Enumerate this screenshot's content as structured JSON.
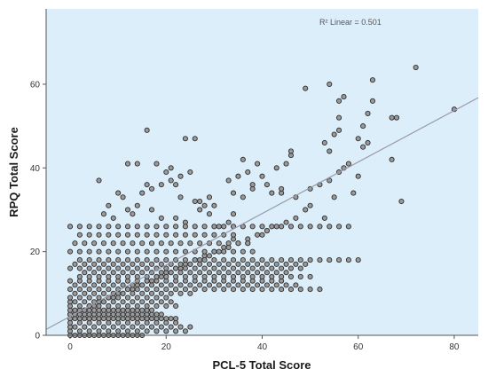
{
  "chart_data": {
    "type": "scatter",
    "title": "",
    "xlabel": "PCL-5 Total Score",
    "ylabel": "RPQ Total Score",
    "xlim": [
      -5,
      85
    ],
    "ylim": [
      0,
      78
    ],
    "xticks": [
      0,
      20,
      40,
      60,
      80
    ],
    "yticks": [
      0,
      20,
      40,
      60
    ],
    "grid": false,
    "annotation": "R² Linear = 0.501",
    "fit_line": {
      "intercept": 4.5,
      "slope": 0.615,
      "x_range": [
        -5,
        85
      ]
    },
    "colors": {
      "plot_background": "#ddeefb",
      "point_fill": "#9a9a9a",
      "point_stroke": "#2e2e2e",
      "fit_line": "#9a9aa8",
      "axis": "#555555"
    },
    "points_x": [
      72,
      80,
      54,
      57,
      49,
      63,
      63,
      68,
      67,
      62,
      61,
      61,
      56,
      56,
      56,
      55,
      53,
      54,
      58,
      56,
      60,
      59,
      55,
      67,
      69,
      60,
      62,
      57,
      54,
      52,
      50,
      44,
      45,
      36,
      46,
      46,
      43,
      39,
      37,
      35,
      33,
      41,
      38,
      30,
      27,
      29,
      34,
      36,
      26,
      24,
      22,
      21,
      18,
      16,
      20,
      23,
      17,
      19,
      14,
      13,
      16,
      15,
      12,
      10,
      11,
      9,
      7,
      8,
      6,
      12,
      14,
      17,
      19,
      21,
      23,
      25,
      26,
      27,
      28,
      29,
      24,
      22,
      31,
      33,
      34,
      38,
      40,
      42,
      44,
      47,
      49,
      50,
      53,
      41,
      40,
      37,
      34,
      32,
      30,
      28,
      26,
      24,
      22,
      20,
      18,
      16,
      14,
      12,
      10,
      8,
      6,
      4,
      2,
      0,
      3,
      5,
      7,
      9,
      11,
      13,
      15,
      17,
      19,
      21,
      23,
      25,
      27,
      29,
      31,
      33,
      35,
      37,
      39,
      41,
      43,
      45,
      47,
      0,
      1,
      2,
      3,
      4,
      5,
      6,
      7,
      8,
      9,
      10,
      11,
      12,
      13,
      14,
      15,
      0,
      2,
      4,
      6,
      8,
      10,
      12,
      14,
      16,
      18,
      20,
      22,
      24,
      0,
      1,
      3,
      5,
      7,
      9,
      11,
      13,
      15,
      17,
      19,
      21,
      23,
      25,
      0,
      2,
      4,
      6,
      8,
      10,
      12,
      14,
      16,
      18,
      20,
      22,
      0,
      1,
      2,
      3,
      4,
      5,
      6,
      7,
      8,
      9,
      10,
      11,
      12,
      13,
      14,
      15,
      16,
      17,
      18,
      19,
      20,
      21,
      22,
      0,
      1,
      2,
      3,
      4,
      5,
      6,
      7,
      8,
      9,
      10,
      11,
      12,
      13,
      14,
      15,
      16,
      17,
      18,
      19,
      0,
      1,
      2,
      3,
      4,
      5,
      6,
      7,
      8,
      9,
      10,
      11,
      12,
      13,
      14,
      15,
      16,
      17,
      0,
      2,
      4,
      6,
      8,
      10,
      12,
      14,
      16,
      18,
      20,
      22,
      0,
      1,
      3,
      5,
      7,
      9,
      11,
      13,
      15,
      17,
      19,
      21,
      0,
      2,
      4,
      6,
      8,
      10,
      12,
      14,
      16,
      18,
      20,
      1,
      3,
      5,
      7,
      9,
      11,
      13,
      15,
      17,
      19,
      21,
      23,
      25,
      0,
      2,
      4,
      6,
      8,
      10,
      12,
      14,
      16,
      18,
      20,
      22,
      24,
      26,
      28,
      30,
      32,
      34,
      36,
      38,
      40,
      42,
      44,
      46,
      48,
      50,
      52,
      1,
      3,
      5,
      7,
      9,
      11,
      13,
      15,
      17,
      19,
      21,
      23,
      25,
      27,
      29,
      31,
      33,
      35,
      37,
      39,
      41,
      43,
      45,
      47,
      0,
      2,
      4,
      6,
      8,
      10,
      12,
      14,
      16,
      18,
      20,
      22,
      24,
      26,
      28,
      30,
      32,
      34,
      36,
      38,
      40,
      42,
      44,
      2,
      4,
      6,
      8,
      10,
      12,
      14,
      16,
      18,
      20,
      22,
      24,
      26,
      28,
      30,
      32,
      34,
      36,
      38,
      40,
      42,
      44,
      46,
      48,
      50,
      3,
      5,
      7,
      9,
      11,
      13,
      15,
      17,
      19,
      21,
      23,
      25,
      27,
      29,
      31,
      33,
      35,
      37,
      39,
      41,
      43,
      45,
      0,
      2,
      4,
      6,
      8,
      10,
      12,
      14,
      16,
      18,
      20,
      22,
      24,
      26,
      28,
      30,
      32,
      34,
      36,
      38,
      40,
      42,
      44,
      46,
      48,
      1,
      3,
      5,
      7,
      9,
      11,
      13,
      15,
      17,
      19,
      21,
      23,
      25,
      27,
      29,
      31,
      33,
      35,
      37,
      39,
      41,
      43,
      45,
      47,
      49,
      2,
      4,
      6,
      8,
      10,
      12,
      14,
      16,
      18,
      20,
      22,
      24,
      26,
      28,
      30,
      32,
      34,
      36,
      38,
      40,
      42,
      44,
      46,
      48,
      50,
      52,
      54,
      56,
      58,
      60,
      0,
      2,
      4,
      6,
      8,
      10,
      12,
      14,
      16,
      18,
      20,
      22,
      24,
      26,
      28,
      30,
      32,
      34,
      36,
      38,
      1,
      3,
      5,
      7,
      9,
      11,
      13,
      15,
      17,
      19,
      21,
      23,
      25,
      27,
      29,
      31,
      33,
      35,
      37,
      2,
      4,
      6,
      8,
      10,
      12,
      14,
      16,
      18,
      20,
      22,
      24,
      26,
      28,
      30,
      32,
      34,
      0,
      2,
      4,
      6,
      8,
      10,
      12,
      14,
      16,
      18,
      20,
      22,
      24,
      26,
      28,
      30,
      32,
      34,
      36,
      38,
      40,
      42,
      44,
      46,
      48,
      50,
      52,
      54,
      56,
      58
    ],
    "points_y": [
      64,
      54,
      60,
      57,
      59,
      61,
      56,
      52,
      52,
      53,
      50,
      45,
      56,
      52,
      49,
      48,
      46,
      44,
      41,
      39,
      38,
      34,
      33,
      42,
      32,
      47,
      46,
      40,
      37,
      36,
      35,
      34,
      41,
      42,
      43,
      44,
      40,
      41,
      39,
      38,
      37,
      36,
      35,
      31,
      32,
      33,
      34,
      33,
      47,
      47,
      36,
      40,
      41,
      49,
      39,
      33,
      30,
      28,
      31,
      29,
      36,
      34,
      30,
      34,
      33,
      28,
      29,
      31,
      37,
      41,
      41,
      35,
      36,
      37,
      38,
      39,
      32,
      30,
      31,
      29,
      27,
      28,
      26,
      27,
      29,
      36,
      38,
      34,
      35,
      33,
      30,
      31,
      28,
      25,
      24,
      22,
      23,
      21,
      20,
      19,
      18,
      17,
      16,
      15,
      14,
      13,
      12,
      11,
      10,
      9,
      8,
      7,
      6,
      5,
      6,
      7,
      8,
      9,
      10,
      11,
      12,
      13,
      14,
      15,
      16,
      17,
      18,
      19,
      20,
      21,
      22,
      23,
      24,
      25,
      26,
      27,
      28,
      0,
      0,
      0,
      0,
      0,
      0,
      0,
      0,
      0,
      0,
      0,
      0,
      0,
      0,
      0,
      0,
      1,
      1,
      1,
      1,
      1,
      1,
      1,
      1,
      1,
      1,
      1,
      1,
      1,
      2,
      2,
      2,
      2,
      2,
      2,
      2,
      2,
      2,
      2,
      2,
      2,
      2,
      2,
      3,
      3,
      3,
      3,
      3,
      3,
      3,
      3,
      3,
      3,
      3,
      3,
      4,
      4,
      4,
      4,
      4,
      4,
      4,
      4,
      4,
      4,
      4,
      4,
      4,
      4,
      4,
      4,
      4,
      4,
      4,
      4,
      4,
      4,
      4,
      5,
      5,
      5,
      5,
      5,
      5,
      5,
      5,
      5,
      5,
      5,
      5,
      5,
      5,
      5,
      5,
      5,
      5,
      5,
      5,
      6,
      6,
      6,
      6,
      6,
      6,
      6,
      6,
      6,
      6,
      6,
      6,
      6,
      6,
      6,
      6,
      6,
      6,
      7,
      7,
      7,
      7,
      7,
      7,
      7,
      7,
      7,
      7,
      7,
      7,
      8,
      8,
      8,
      8,
      8,
      8,
      8,
      8,
      8,
      8,
      8,
      8,
      9,
      9,
      9,
      9,
      9,
      9,
      9,
      9,
      9,
      9,
      9,
      10,
      10,
      10,
      10,
      10,
      10,
      10,
      10,
      10,
      10,
      10,
      10,
      10,
      11,
      11,
      11,
      11,
      11,
      11,
      11,
      11,
      11,
      11,
      11,
      11,
      11,
      11,
      11,
      11,
      11,
      11,
      11,
      11,
      11,
      11,
      11,
      11,
      11,
      11,
      11,
      12,
      12,
      12,
      12,
      12,
      12,
      12,
      12,
      12,
      12,
      12,
      12,
      12,
      12,
      12,
      12,
      12,
      12,
      12,
      12,
      12,
      12,
      12,
      12,
      13,
      13,
      13,
      13,
      13,
      13,
      13,
      13,
      13,
      13,
      13,
      13,
      13,
      13,
      13,
      13,
      13,
      13,
      13,
      13,
      13,
      13,
      13,
      14,
      14,
      14,
      14,
      14,
      14,
      14,
      14,
      14,
      14,
      14,
      14,
      14,
      14,
      14,
      14,
      14,
      14,
      14,
      14,
      14,
      14,
      14,
      14,
      14,
      15,
      15,
      15,
      15,
      15,
      15,
      15,
      15,
      15,
      15,
      15,
      15,
      15,
      15,
      15,
      15,
      15,
      15,
      15,
      15,
      15,
      15,
      16,
      16,
      16,
      16,
      16,
      16,
      16,
      16,
      16,
      16,
      16,
      16,
      16,
      16,
      16,
      16,
      16,
      16,
      16,
      16,
      16,
      16,
      16,
      16,
      16,
      17,
      17,
      17,
      17,
      17,
      17,
      17,
      17,
      17,
      17,
      17,
      17,
      17,
      17,
      17,
      17,
      17,
      17,
      17,
      17,
      17,
      17,
      17,
      17,
      17,
      18,
      18,
      18,
      18,
      18,
      18,
      18,
      18,
      18,
      18,
      18,
      18,
      18,
      18,
      18,
      18,
      18,
      18,
      18,
      18,
      18,
      18,
      18,
      18,
      18,
      18,
      18,
      18,
      18,
      18,
      20,
      20,
      20,
      20,
      20,
      20,
      20,
      20,
      20,
      20,
      20,
      20,
      20,
      20,
      20,
      20,
      20,
      20,
      20,
      20,
      22,
      22,
      22,
      22,
      22,
      22,
      22,
      22,
      22,
      22,
      22,
      22,
      22,
      22,
      22,
      22,
      22,
      22,
      22,
      24,
      24,
      24,
      24,
      24,
      24,
      24,
      24,
      24,
      24,
      24,
      24,
      24,
      24,
      24,
      24,
      24,
      26,
      26,
      26,
      26,
      26,
      26,
      26,
      26,
      26,
      26,
      26,
      26,
      26,
      26,
      26,
      26,
      26,
      26,
      26,
      26,
      26,
      26,
      26,
      26,
      26,
      26,
      26,
      26,
      26,
      26
    ]
  }
}
